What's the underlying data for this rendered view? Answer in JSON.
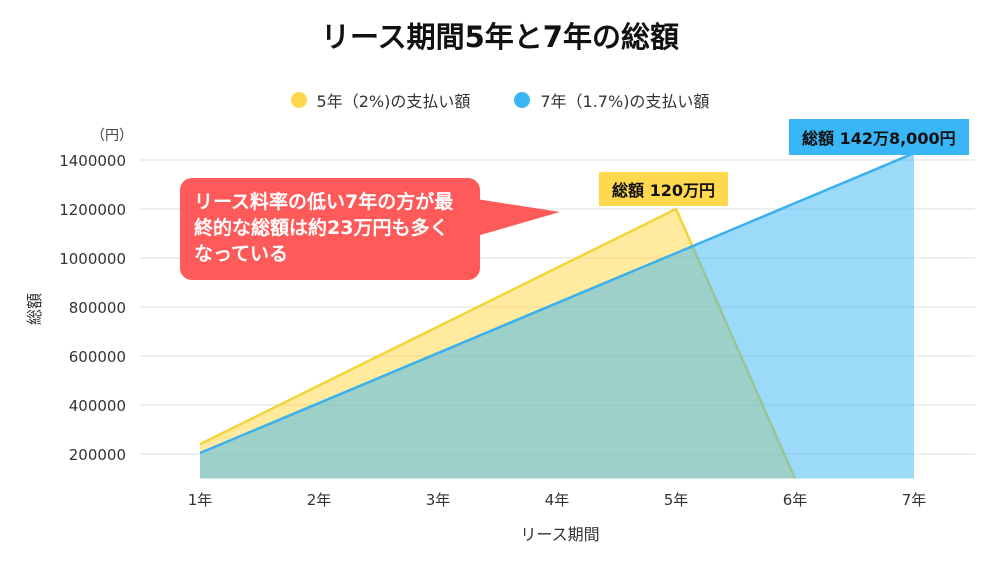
{
  "chart_data": {
    "type": "area",
    "title": "リース期間5年と7年の総額",
    "xlabel": "リース期間",
    "ylabel": "総額",
    "yunit": "（円）",
    "categories": [
      "1年",
      "2年",
      "3年",
      "4年",
      "5年",
      "6年",
      "7年"
    ],
    "ylim": [
      100000,
      1450000
    ],
    "yticks": [
      200000,
      400000,
      600000,
      800000,
      1000000,
      1200000,
      1400000
    ],
    "grid": true,
    "legend_position": "top",
    "series": [
      {
        "name": "5年（2%)の支払い額",
        "color": "#ffd84d",
        "values": [
          240000,
          480000,
          720000,
          960000,
          1200000,
          100000,
          null
        ]
      },
      {
        "name": "7年（1.7%)の支払い額",
        "color": "#39b6f5",
        "values": [
          204000,
          408000,
          612000,
          816000,
          1020000,
          1224000,
          1428000
        ]
      }
    ],
    "annotations": {
      "callout": "リース料率の低い7年の方が最終的な総額は約23万円も多くなっている",
      "label_5yr": "総額 120万円",
      "label_7yr": "総額 142万8,000円"
    }
  }
}
